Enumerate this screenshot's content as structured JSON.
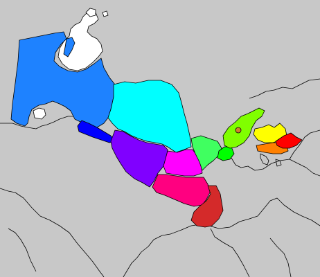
{
  "map": {
    "background_color": "#c8c8c8",
    "water_color": "#ffffff",
    "border_color": "#000000",
    "regions": [
      {
        "id": "karakalpakstan",
        "fill": "#1e82ff"
      },
      {
        "id": "navoiy",
        "fill": "#00ffff"
      },
      {
        "id": "khorezm",
        "fill": "#0000ff"
      },
      {
        "id": "bukhara",
        "fill": "#8000ff"
      },
      {
        "id": "samarkand",
        "fill": "#ff00ff"
      },
      {
        "id": "kashkadarya",
        "fill": "#ff0080"
      },
      {
        "id": "surkhandarya",
        "fill": "#d42a2a"
      },
      {
        "id": "jizzakh",
        "fill": "#40ff60"
      },
      {
        "id": "syrdarya",
        "fill": "#00ff00"
      },
      {
        "id": "tashkent",
        "fill": "#80ff00"
      },
      {
        "id": "tashkent-city",
        "fill": "#d08030"
      },
      {
        "id": "namangan",
        "fill": "#ffff00"
      },
      {
        "id": "fergana",
        "fill": "#ff8000"
      },
      {
        "id": "andijan",
        "fill": "#ff0000"
      }
    ]
  }
}
